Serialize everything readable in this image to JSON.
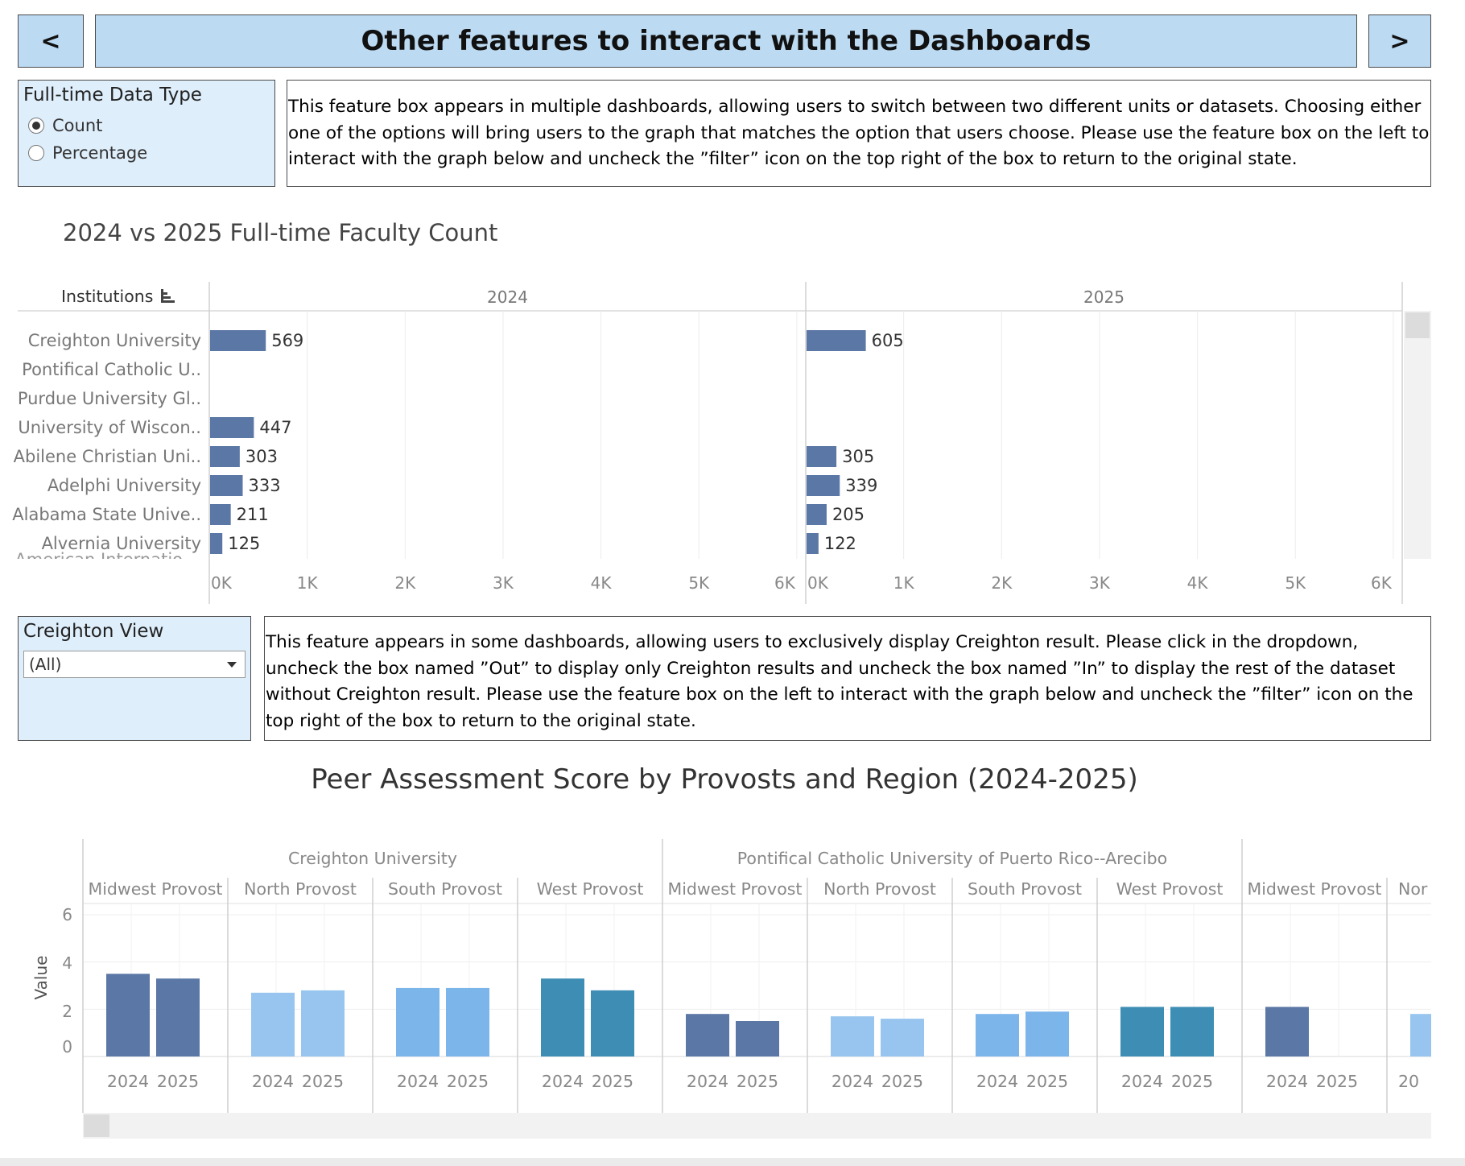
{
  "header": {
    "prev_label": "<",
    "next_label": ">",
    "title": "Other features to interact with the Dashboards"
  },
  "feature1": {
    "title": "Full-time Data Type",
    "options": [
      "Count",
      "Percentage"
    ],
    "selected": "Count",
    "description": "This feature box appears in multiple dashboards, allowing users to switch between two different units or datasets. Choosing either one of the options will bring users to the graph that matches the option that users choose. Please use the feature box on the left to interact with the graph below and uncheck the ”filter” icon on the top right of the box to return to the original state."
  },
  "chart1": {
    "title": "2024 vs 2025 Full-time Faculty Count",
    "row_header": "Institutions",
    "cut_row_label": "American Internatio..",
    "bar_color": "#5b77a5"
  },
  "feature2": {
    "title": "Creighton View",
    "select_value": "(All)",
    "description": "This feature appears in some dashboards, allowing users to exclusively display Creighton result. Please click in the dropdown, uncheck the box named ”Out” to display only Creighton results and uncheck the box named ”In” to display the rest of the dataset without Creighton result. Please use the feature box on the left to interact with the graph below and uncheck the ”filter” icon on the top right of the box to return to the original state."
  },
  "chart2": {
    "title": "Peer Assessment Score by Provosts and Region (2024-2025)",
    "ylabel": "Value",
    "colors": {
      "Midwest Provost": "#5b77a5",
      "North Provost": "#97c5ef",
      "South Provost": "#7bb5ea",
      "West Provost": "#3e8db4"
    }
  },
  "chart_data": [
    {
      "type": "bar",
      "title": "2024 vs 2025 Full-time Faculty Count",
      "orientation": "horizontal",
      "facets": [
        "2024",
        "2025"
      ],
      "categories": [
        "Creighton University",
        "Pontifical Catholic U..",
        "Purdue University Gl..",
        "University of Wiscon..",
        "Abilene Christian Uni..",
        "Adelphi University",
        "Alabama State Unive..",
        "Alvernia University"
      ],
      "series": [
        {
          "name": "2024",
          "values": [
            569,
            null,
            null,
            447,
            303,
            333,
            211,
            125
          ]
        },
        {
          "name": "2025",
          "values": [
            605,
            null,
            null,
            null,
            305,
            339,
            205,
            122
          ]
        }
      ],
      "xlim": [
        0,
        6000
      ],
      "x_ticks": [
        "0K",
        "1K",
        "2K",
        "3K",
        "4K",
        "5K",
        "6K"
      ]
    },
    {
      "type": "bar",
      "title": "Peer Assessment Score by Provosts and Region (2024-2025)",
      "ylabel": "Value",
      "ylim": [
        0,
        6
      ],
      "y_ticks": [
        "0",
        "2",
        "4",
        "6"
      ],
      "groups": [
        {
          "institution": "Creighton University",
          "panels": [
            {
              "provost": "Midwest Provost",
              "x": [
                "2024",
                "2025"
              ],
              "values": [
                3.5,
                3.3
              ]
            },
            {
              "provost": "North Provost",
              "x": [
                "2024",
                "2025"
              ],
              "values": [
                2.7,
                2.8
              ]
            },
            {
              "provost": "South Provost",
              "x": [
                "2024",
                "2025"
              ],
              "values": [
                2.9,
                2.9
              ]
            },
            {
              "provost": "West Provost",
              "x": [
                "2024",
                "2025"
              ],
              "values": [
                3.3,
                2.8
              ]
            }
          ]
        },
        {
          "institution": "Pontifical Catholic University of Puerto Rico--Arecibo",
          "panels": [
            {
              "provost": "Midwest Provost",
              "x": [
                "2024",
                "2025"
              ],
              "values": [
                1.8,
                1.5
              ]
            },
            {
              "provost": "North Provost",
              "x": [
                "2024",
                "2025"
              ],
              "values": [
                1.7,
                1.6
              ]
            },
            {
              "provost": "South Provost",
              "x": [
                "2024",
                "2025"
              ],
              "values": [
                1.8,
                1.9
              ]
            },
            {
              "provost": "West Provost",
              "x": [
                "2024",
                "2025"
              ],
              "values": [
                2.1,
                2.1
              ]
            }
          ]
        },
        {
          "institution": "",
          "panels": [
            {
              "provost": "Midwest Provost",
              "x": [
                "2024",
                "2025"
              ],
              "values": [
                2.1,
                null
              ]
            },
            {
              "provost": "Nor",
              "x": [
                "20"
              ],
              "values": [
                1.8
              ]
            }
          ]
        }
      ]
    }
  ]
}
